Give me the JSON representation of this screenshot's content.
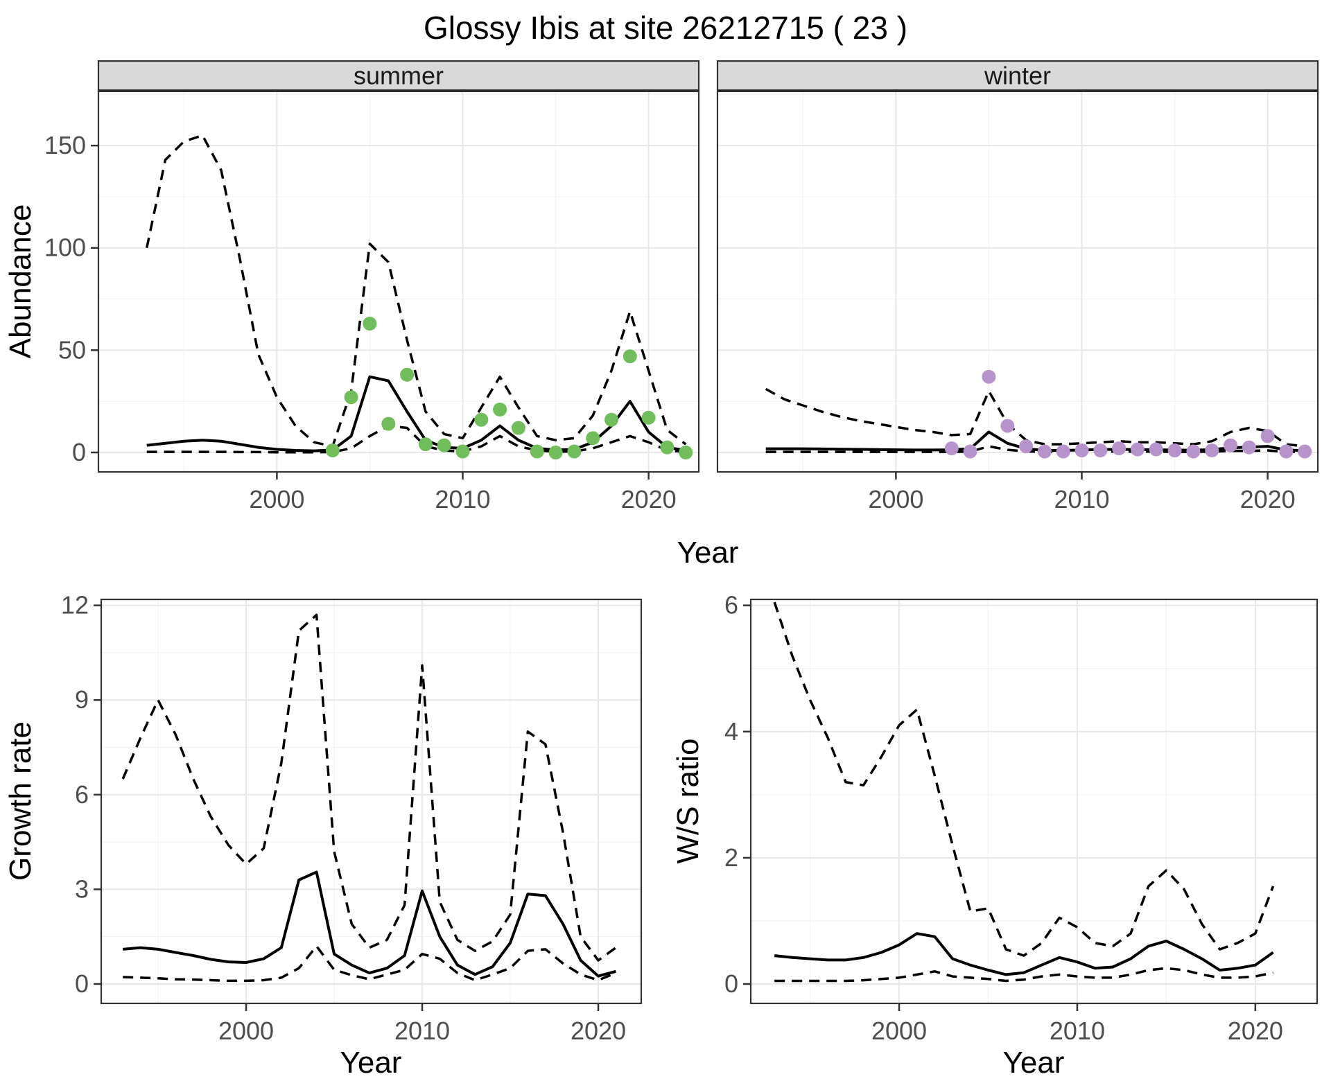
{
  "title": "Glossy Ibis at site 26212715 ( 23 )",
  "colors": {
    "summer_points": "#71BC5B",
    "winter_points": "#B694CB",
    "line": "#000000",
    "strip_bg": "#D9D9D9",
    "panel_border": "#333333",
    "grid_major": "#E7E7E7",
    "grid_minor": "#F3F3F3",
    "tick_text": "#4D4D4D"
  },
  "shared_axes": {
    "top_xlabel": "Year",
    "top_ylabel": "Abundance"
  },
  "chart_data": [
    {
      "id": "abundance_summer",
      "type": "line",
      "facet_label": "summer",
      "xlabel": "",
      "ylabel": "Abundance",
      "x_years": [
        1993,
        1994,
        1995,
        1996,
        1997,
        1998,
        1999,
        2000,
        2001,
        2002,
        2003,
        2004,
        2005,
        2006,
        2007,
        2008,
        2009,
        2010,
        2011,
        2012,
        2013,
        2014,
        2015,
        2016,
        2017,
        2018,
        2019,
        2020,
        2021,
        2022
      ],
      "series": [
        {
          "name": "lower_ci",
          "style": "dashed",
          "values": [
            0.3,
            0.3,
            0.3,
            0.3,
            0.3,
            0.2,
            0.2,
            0.1,
            0.1,
            0.1,
            0.2,
            2,
            8,
            13,
            12,
            3,
            1,
            0.5,
            3,
            8,
            3,
            1,
            0.4,
            0.5,
            2,
            5,
            8,
            5,
            1,
            0.3
          ]
        },
        {
          "name": "upper_ci",
          "style": "dashed",
          "values": [
            100,
            143,
            152,
            155,
            138,
            95,
            48,
            27,
            13,
            5,
            3,
            30,
            102,
            93,
            55,
            20,
            9,
            7,
            22,
            37,
            22,
            8,
            6,
            7,
            18,
            40,
            69,
            40,
            11,
            4
          ]
        },
        {
          "name": "mean",
          "style": "solid",
          "values": [
            3.5,
            4.5,
            5.5,
            6,
            5.5,
            4,
            2.5,
            1.5,
            1,
            0.8,
            1.2,
            8,
            37,
            35,
            20,
            6,
            2.5,
            2,
            6,
            13,
            6,
            2,
            1.2,
            1.5,
            5,
            13,
            25,
            10,
            2.5,
            1
          ]
        }
      ],
      "observed_points": {
        "color_key": "summer_points",
        "years": [
          2003,
          2004,
          2005,
          2006,
          2007,
          2008,
          2009,
          2010,
          2011,
          2012,
          2013,
          2014,
          2015,
          2016,
          2017,
          2018,
          2019,
          2020,
          2021,
          2022
        ],
        "values": [
          1,
          27,
          63,
          14,
          38,
          4,
          3.5,
          0.5,
          16,
          21,
          12,
          0.5,
          0,
          0.5,
          7,
          16,
          47,
          17,
          2.5,
          0
        ]
      },
      "xticks": [
        2000,
        2010,
        2020
      ],
      "xticks_minor": [
        1995,
        2005,
        2015
      ],
      "yticks": [
        0,
        50,
        100,
        150
      ],
      "yticks_minor": [
        25,
        75,
        125,
        175
      ],
      "xlim": [
        1990.4,
        2022.7
      ],
      "ylim": [
        -9.5,
        176.8
      ],
      "grid": true
    },
    {
      "id": "abundance_winter",
      "type": "line",
      "facet_label": "winter",
      "xlabel": "",
      "ylabel": "",
      "x_years": [
        1993,
        1994,
        1995,
        1996,
        1997,
        1998,
        1999,
        2000,
        2001,
        2002,
        2003,
        2004,
        2005,
        2006,
        2007,
        2008,
        2009,
        2010,
        2011,
        2012,
        2013,
        2014,
        2015,
        2016,
        2017,
        2018,
        2019,
        2020,
        2021,
        2022
      ],
      "series": [
        {
          "name": "lower_ci",
          "style": "dashed",
          "values": [
            0.3,
            0.3,
            0.3,
            0.3,
            0.3,
            0.3,
            0.3,
            0.3,
            0.3,
            0.3,
            0.3,
            0.4,
            3,
            1.3,
            0.5,
            0.3,
            0.3,
            0.3,
            0.4,
            0.4,
            0.4,
            0.4,
            0.3,
            0.3,
            0.4,
            0.8,
            0.8,
            1,
            0.3,
            0.3
          ]
        },
        {
          "name": "upper_ci",
          "style": "dashed",
          "values": [
            31,
            26,
            23,
            20,
            17.5,
            15.5,
            14,
            12.5,
            11,
            10,
            8.5,
            9,
            30,
            14,
            6,
            4,
            4,
            4.5,
            5,
            5.5,
            5,
            5,
            4.5,
            4,
            5.5,
            10,
            12,
            10.5,
            4,
            3
          ]
        },
        {
          "name": "mean",
          "style": "solid",
          "values": [
            1.8,
            1.8,
            1.8,
            1.7,
            1.6,
            1.5,
            1.4,
            1.3,
            1.2,
            1.2,
            1.3,
            1.8,
            10,
            4.5,
            1.8,
            1,
            1,
            1.2,
            1.4,
            1.5,
            1.4,
            1.3,
            1.2,
            1.1,
            1.4,
            2.3,
            2.6,
            3,
            1.2,
            0.9
          ]
        }
      ],
      "observed_points": {
        "color_key": "winter_points",
        "years": [
          2003,
          2004,
          2005,
          2006,
          2007,
          2008,
          2009,
          2010,
          2011,
          2012,
          2013,
          2014,
          2015,
          2016,
          2017,
          2018,
          2019,
          2020,
          2021,
          2022
        ],
        "values": [
          2,
          0.5,
          37,
          13,
          3,
          0.5,
          0.5,
          1,
          1,
          2,
          1.5,
          1.5,
          1,
          0.5,
          1,
          3.5,
          2.5,
          8,
          0.5,
          0.5
        ]
      },
      "xticks": [
        2000,
        2010,
        2020
      ],
      "xticks_minor": [
        1995,
        2005,
        2015
      ],
      "yticks": [
        0,
        50,
        100,
        150
      ],
      "yticks_minor": [
        25,
        75,
        125,
        175
      ],
      "xlim": [
        1990.4,
        2022.7
      ],
      "ylim": [
        -9.5,
        176.8
      ],
      "grid": true
    },
    {
      "id": "growth_rate",
      "type": "line",
      "facet_label": "",
      "xlabel": "Year",
      "ylabel": "Growth rate",
      "x_years": [
        1993,
        1994,
        1995,
        1996,
        1997,
        1998,
        1999,
        2000,
        2001,
        2002,
        2003,
        2004,
        2005,
        2006,
        2007,
        2008,
        2009,
        2010,
        2011,
        2012,
        2013,
        2014,
        2015,
        2016,
        2017,
        2018,
        2019,
        2020,
        2021
      ],
      "series": [
        {
          "name": "lower_ci",
          "style": "dashed",
          "values": [
            0.22,
            0.2,
            0.18,
            0.15,
            0.14,
            0.12,
            0.1,
            0.1,
            0.12,
            0.2,
            0.5,
            1.2,
            0.45,
            0.28,
            0.15,
            0.3,
            0.45,
            0.95,
            0.8,
            0.35,
            0.12,
            0.3,
            0.5,
            1.05,
            1.1,
            0.65,
            0.3,
            0.12,
            0.35
          ]
        },
        {
          "name": "upper_ci",
          "style": "dashed",
          "values": [
            6.5,
            7.8,
            9.0,
            7.9,
            6.5,
            5.3,
            4.4,
            3.8,
            4.3,
            7.0,
            11.2,
            11.7,
            4.2,
            1.9,
            1.15,
            1.4,
            2.5,
            10.1,
            2.6,
            1.4,
            1.05,
            1.35,
            2.2,
            8.0,
            7.6,
            4.8,
            1.5,
            0.75,
            1.15
          ]
        },
        {
          "name": "mean",
          "style": "solid",
          "values": [
            1.1,
            1.15,
            1.1,
            1.0,
            0.9,
            0.78,
            0.7,
            0.68,
            0.8,
            1.15,
            3.3,
            3.55,
            0.95,
            0.6,
            0.35,
            0.5,
            0.9,
            2.95,
            1.5,
            0.6,
            0.3,
            0.55,
            1.3,
            2.85,
            2.8,
            1.9,
            0.75,
            0.25,
            0.4
          ]
        }
      ],
      "observed_points": null,
      "xticks": [
        2000,
        2010,
        2020
      ],
      "xticks_minor": [
        1995,
        2005,
        2015
      ],
      "yticks": [
        0,
        3,
        6,
        9,
        12
      ],
      "yticks_minor": [
        1.5,
        4.5,
        7.5,
        10.5
      ],
      "xlim": [
        1991.77,
        2022.44
      ],
      "ylim": [
        -0.615,
        12.19
      ],
      "grid": true
    },
    {
      "id": "ws_ratio",
      "type": "line",
      "facet_label": "",
      "xlabel": "Year",
      "ylabel": "W/S ratio",
      "x_years": [
        1993,
        1994,
        1995,
        1996,
        1997,
        1998,
        1999,
        2000,
        2001,
        2002,
        2003,
        2004,
        2005,
        2006,
        2007,
        2008,
        2009,
        2010,
        2011,
        2012,
        2013,
        2014,
        2015,
        2016,
        2017,
        2018,
        2019,
        2020,
        2021
      ],
      "series": [
        {
          "name": "lower_ci",
          "style": "dashed",
          "values": [
            0.05,
            0.05,
            0.05,
            0.05,
            0.05,
            0.06,
            0.08,
            0.1,
            0.15,
            0.2,
            0.12,
            0.1,
            0.08,
            0.05,
            0.07,
            0.12,
            0.15,
            0.12,
            0.1,
            0.1,
            0.15,
            0.22,
            0.25,
            0.22,
            0.15,
            0.1,
            0.1,
            0.12,
            0.18
          ]
        },
        {
          "name": "upper_ci",
          "style": "dashed",
          "values": [
            6.05,
            5.2,
            4.5,
            3.9,
            3.2,
            3.15,
            3.6,
            4.1,
            4.35,
            3.3,
            2.2,
            1.15,
            1.2,
            0.55,
            0.45,
            0.65,
            1.05,
            0.9,
            0.65,
            0.6,
            0.8,
            1.55,
            1.8,
            1.5,
            0.95,
            0.55,
            0.65,
            0.8,
            1.55
          ]
        },
        {
          "name": "mean",
          "style": "solid",
          "values": [
            0.45,
            0.42,
            0.4,
            0.38,
            0.38,
            0.42,
            0.5,
            0.62,
            0.8,
            0.75,
            0.4,
            0.3,
            0.22,
            0.15,
            0.18,
            0.3,
            0.42,
            0.35,
            0.25,
            0.27,
            0.4,
            0.6,
            0.68,
            0.55,
            0.4,
            0.22,
            0.25,
            0.3,
            0.5
          ]
        }
      ],
      "observed_points": null,
      "xticks": [
        2000,
        2010,
        2020
      ],
      "xticks_minor": [
        1995,
        2005,
        2015
      ],
      "yticks": [
        0,
        2,
        4,
        6
      ],
      "yticks_minor": [
        1,
        3,
        5
      ],
      "xlim": [
        1991.67,
        2023.47
      ],
      "ylim": [
        -0.307,
        6.095
      ],
      "grid": true
    }
  ]
}
